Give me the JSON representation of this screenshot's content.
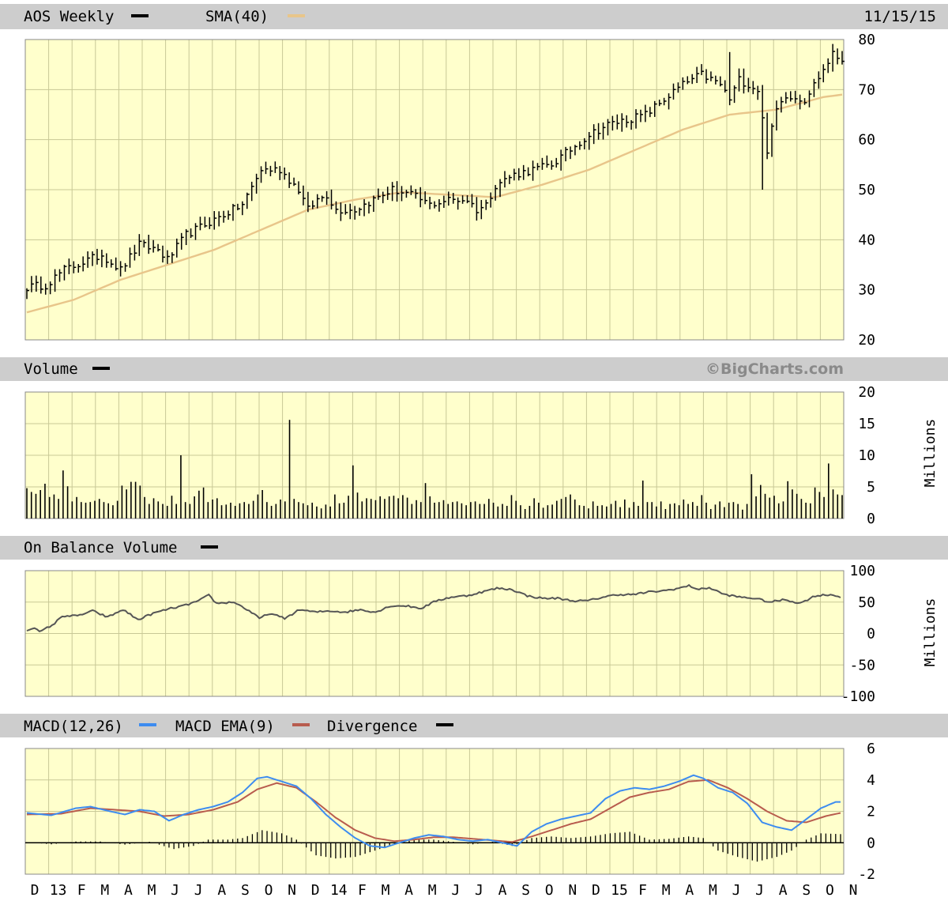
{
  "header": {
    "ticker_label": "AOS Weekly",
    "sma_label": "SMA(40)",
    "date": "11/15/15",
    "watermark": "©BigCharts.com",
    "volume_label": "Volume",
    "obv_label": "On Balance Volume",
    "macd_label": "MACD(12,26)",
    "macd_ema_label": "MACD EMA(9)",
    "divergence_label": "Divergence",
    "units_label": "Millions"
  },
  "colors": {
    "plot_bg": "#ffffcc",
    "grid": "#c8c896",
    "header_bg": "#cdcdcd",
    "price": "#000000",
    "sma": "#e8c58a",
    "obv": "#555555",
    "macd": "#3d8cf0",
    "macd_ema": "#b85c4e"
  },
  "chart_data": [
    {
      "name": "AOS Weekly",
      "type": "ohlc",
      "ylim": [
        20,
        80
      ],
      "yticks": [
        "80",
        "70",
        "60",
        "50",
        "40",
        "30",
        "20"
      ],
      "xticks": [
        "D",
        "13",
        "F",
        "M",
        "A",
        "M",
        "J",
        "J",
        "A",
        "S",
        "O",
        "N",
        "D",
        "14",
        "F",
        "M",
        "A",
        "M",
        "J",
        "J",
        "A",
        "S",
        "O",
        "N",
        "D",
        "15",
        "F",
        "M",
        "A",
        "M",
        "J",
        "J",
        "A",
        "S",
        "O",
        "N"
      ],
      "close_anchors": [
        [
          0,
          30.5
        ],
        [
          4,
          31
        ],
        [
          8,
          34
        ],
        [
          12,
          35.5
        ],
        [
          16,
          37
        ],
        [
          20,
          34
        ],
        [
          24,
          39
        ],
        [
          28,
          38
        ],
        [
          30,
          36
        ],
        [
          34,
          41
        ],
        [
          38,
          43
        ],
        [
          42,
          45
        ],
        [
          46,
          47
        ],
        [
          50,
          54
        ],
        [
          54,
          54
        ],
        [
          58,
          50
        ],
        [
          60,
          46
        ],
        [
          62,
          48
        ],
        [
          64,
          49
        ],
        [
          66,
          46
        ],
        [
          70,
          46
        ],
        [
          74,
          48
        ],
        [
          78,
          50
        ],
        [
          82,
          49
        ],
        [
          86,
          47
        ],
        [
          90,
          48
        ],
        [
          94,
          48
        ],
        [
          96,
          46
        ],
        [
          98,
          47
        ],
        [
          100,
          51
        ],
        [
          104,
          53
        ],
        [
          108,
          54
        ],
        [
          112,
          55
        ],
        [
          116,
          58
        ],
        [
          120,
          61
        ],
        [
          124,
          63
        ],
        [
          128,
          64
        ],
        [
          132,
          65
        ],
        [
          136,
          68
        ],
        [
          140,
          71
        ],
        [
          144,
          73
        ],
        [
          148,
          71
        ],
        [
          150,
          68
        ],
        [
          152,
          72
        ],
        [
          156,
          70
        ],
        [
          158,
          58
        ],
        [
          160,
          66
        ],
        [
          162,
          69
        ],
        [
          166,
          68
        ],
        [
          168,
          71
        ],
        [
          170,
          74
        ],
        [
          172,
          77
        ],
        [
          174,
          76
        ]
      ],
      "sma_anchors": [
        [
          0,
          25.5
        ],
        [
          10,
          28
        ],
        [
          20,
          32
        ],
        [
          30,
          35
        ],
        [
          40,
          38
        ],
        [
          50,
          42
        ],
        [
          60,
          46
        ],
        [
          70,
          48
        ],
        [
          80,
          49.5
        ],
        [
          90,
          49
        ],
        [
          100,
          48.5
        ],
        [
          110,
          51
        ],
        [
          120,
          54
        ],
        [
          130,
          58
        ],
        [
          140,
          62
        ],
        [
          150,
          65
        ],
        [
          160,
          66
        ],
        [
          170,
          68.5
        ],
        [
          174,
          69
        ]
      ]
    },
    {
      "name": "Volume",
      "type": "bar",
      "ylim": [
        0,
        20
      ],
      "yticks": [
        "20",
        "15",
        "10",
        "5",
        "0"
      ],
      "unit": "Millions",
      "values": [
        4.8,
        4.2,
        3.9,
        4.5,
        5.5,
        3.4,
        3.8,
        3.1,
        7.6,
        5.1,
        2.7,
        3.4,
        2.6,
        2.5,
        2.6,
        2.8,
        3.1,
        2.6,
        2.4,
        2.1,
        2.8,
        5.2,
        4.6,
        5.8,
        5.8,
        5.2,
        3.4,
        2.3,
        3.2,
        2.7,
        2.3,
        2.0,
        3.6,
        2.3,
        10.0,
        2.6,
        2.3,
        3.5,
        4.4,
        4.9,
        2.6,
        3.0,
        3.2,
        2.1,
        2.2,
        2.5,
        2.0,
        2.4,
        2.6,
        2.3,
        2.8,
        3.8,
        4.5,
        2.6,
        2.0,
        2.3,
        3.0,
        2.7,
        15.6,
        3.1,
        2.6,
        2.4,
        2.1,
        2.5,
        1.9,
        1.6,
        2.2,
        1.9,
        3.8,
        2.4,
        2.5,
        3.6,
        8.4,
        4.1,
        2.7,
        3.2,
        3.1,
        2.9,
        3.5,
        3.1,
        3.5,
        3.6,
        3.2,
        3.7,
        3.3,
        2.3,
        2.9,
        2.6,
        5.6,
        3.5,
        2.5,
        2.6,
        2.9,
        2.3,
        2.6,
        2.7,
        2.4,
        2.1,
        2.6,
        2.7,
        2.3,
        2.3,
        3.1,
        2.5,
        1.9,
        2.3,
        2.0,
        3.7,
        2.8,
        2.1,
        1.5,
        2.0,
        3.2,
        2.5,
        1.7,
        2.1,
        2.2,
        2.8,
        3.1,
        3.4,
        3.8,
        3.0,
        2.1,
        2.0,
        1.6,
        2.7,
        2.0,
        2.1,
        1.9,
        2.3,
        2.8,
        1.8,
        3.0,
        1.7,
        2.6,
        2.0,
        6.0,
        2.6,
        2.6,
        1.9,
        2.7,
        1.5,
        2.3,
        2.4,
        2.1,
        3.0,
        2.3,
        2.6,
        2.0,
        3.7,
        2.5,
        1.5,
        2.2,
        2.7,
        1.8,
        2.5,
        2.6,
        2.3,
        1.4,
        2.3,
        7.0,
        3.5,
        5.3,
        3.9,
        3.3,
        3.6,
        2.4,
        2.7,
        5.9,
        4.6,
        3.9,
        3.1,
        2.5,
        2.4,
        4.9,
        4.2,
        3.4,
        8.7,
        4.6,
        3.8,
        3.7
      ]
    },
    {
      "name": "On Balance Volume",
      "type": "line",
      "ylim": [
        -100,
        100
      ],
      "yticks": [
        "100",
        "50",
        "0",
        "-50",
        "-100"
      ],
      "unit": "Millions",
      "anchors": [
        [
          0,
          5
        ],
        [
          3,
          10
        ],
        [
          5,
          2
        ],
        [
          8,
          9
        ],
        [
          11,
          16
        ],
        [
          14,
          28
        ],
        [
          20,
          28
        ],
        [
          26,
          36
        ],
        [
          32,
          26
        ],
        [
          38,
          38
        ],
        [
          44,
          22
        ],
        [
          50,
          32
        ],
        [
          56,
          39
        ],
        [
          62,
          44
        ],
        [
          68,
          52
        ],
        [
          72,
          61
        ],
        [
          75,
          48
        ],
        [
          82,
          50
        ],
        [
          88,
          36
        ],
        [
          92,
          24
        ],
        [
          96,
          32
        ],
        [
          102,
          24
        ],
        [
          108,
          38
        ],
        [
          114,
          34
        ],
        [
          120,
          36
        ],
        [
          126,
          34
        ],
        [
          132,
          38
        ],
        [
          138,
          34
        ],
        [
          144,
          44
        ],
        [
          150,
          44
        ],
        [
          156,
          40
        ],
        [
          162,
          52
        ],
        [
          168,
          58
        ],
        [
          174,
          60
        ],
        [
          180,
          66
        ],
        [
          186,
          72
        ],
        [
          192,
          70
        ],
        [
          198,
          60
        ],
        [
          204,
          56
        ],
        [
          210,
          56
        ],
        [
          216,
          52
        ],
        [
          222,
          52
        ],
        [
          228,
          58
        ],
        [
          234,
          62
        ],
        [
          240,
          62
        ],
        [
          246,
          66
        ],
        [
          252,
          68
        ],
        [
          258,
          72
        ],
        [
          262,
          76
        ],
        [
          266,
          70
        ],
        [
          270,
          73
        ],
        [
          276,
          62
        ],
        [
          282,
          58
        ],
        [
          288,
          56
        ],
        [
          294,
          50
        ],
        [
          300,
          54
        ],
        [
          306,
          48
        ],
        [
          312,
          60
        ],
        [
          318,
          62
        ],
        [
          322,
          58
        ]
      ]
    },
    {
      "name": "MACD(12,26)",
      "type": "line",
      "ylim": [
        -2,
        6
      ],
      "yticks": [
        "6",
        "4",
        "2",
        "0",
        "-2"
      ],
      "macd_anchors": [
        [
          0,
          1.9
        ],
        [
          10,
          1.75
        ],
        [
          20,
          2.2
        ],
        [
          26,
          2.3
        ],
        [
          34,
          2.0
        ],
        [
          40,
          1.8
        ],
        [
          46,
          2.1
        ],
        [
          52,
          2.0
        ],
        [
          58,
          1.4
        ],
        [
          64,
          1.8
        ],
        [
          70,
          2.1
        ],
        [
          76,
          2.3
        ],
        [
          82,
          2.6
        ],
        [
          88,
          3.2
        ],
        [
          94,
          4.1
        ],
        [
          98,
          4.2
        ],
        [
          104,
          3.9
        ],
        [
          110,
          3.6
        ],
        [
          116,
          2.8
        ],
        [
          122,
          1.8
        ],
        [
          128,
          1.0
        ],
        [
          134,
          0.3
        ],
        [
          140,
          -0.2
        ],
        [
          146,
          -0.3
        ],
        [
          152,
          0.0
        ],
        [
          158,
          0.3
        ],
        [
          164,
          0.5
        ],
        [
          170,
          0.4
        ],
        [
          176,
          0.2
        ],
        [
          182,
          0.1
        ],
        [
          188,
          0.2
        ],
        [
          194,
          0.0
        ],
        [
          200,
          -0.2
        ],
        [
          206,
          0.7
        ],
        [
          212,
          1.2
        ],
        [
          218,
          1.5
        ],
        [
          224,
          1.7
        ],
        [
          230,
          1.9
        ],
        [
          236,
          2.8
        ],
        [
          242,
          3.3
        ],
        [
          248,
          3.5
        ],
        [
          254,
          3.4
        ],
        [
          260,
          3.6
        ],
        [
          266,
          3.9
        ],
        [
          272,
          4.3
        ],
        [
          276,
          4.1
        ],
        [
          282,
          3.5
        ],
        [
          288,
          3.2
        ],
        [
          294,
          2.5
        ],
        [
          300,
          1.3
        ],
        [
          306,
          1.0
        ],
        [
          312,
          0.8
        ],
        [
          318,
          1.5
        ],
        [
          324,
          2.2
        ],
        [
          330,
          2.6
        ]
      ],
      "ema_anchors": [
        [
          0,
          1.8
        ],
        [
          14,
          1.85
        ],
        [
          26,
          2.2
        ],
        [
          36,
          2.1
        ],
        [
          46,
          2.0
        ],
        [
          56,
          1.7
        ],
        [
          66,
          1.8
        ],
        [
          76,
          2.1
        ],
        [
          86,
          2.6
        ],
        [
          94,
          3.4
        ],
        [
          102,
          3.8
        ],
        [
          110,
          3.5
        ],
        [
          118,
          2.6
        ],
        [
          126,
          1.6
        ],
        [
          134,
          0.8
        ],
        [
          142,
          0.3
        ],
        [
          150,
          0.1
        ],
        [
          158,
          0.2
        ],
        [
          166,
          0.35
        ],
        [
          174,
          0.35
        ],
        [
          182,
          0.25
        ],
        [
          190,
          0.15
        ],
        [
          198,
          0.05
        ],
        [
          206,
          0.4
        ],
        [
          214,
          0.8
        ],
        [
          222,
          1.2
        ],
        [
          230,
          1.5
        ],
        [
          238,
          2.2
        ],
        [
          246,
          2.9
        ],
        [
          254,
          3.2
        ],
        [
          262,
          3.4
        ],
        [
          270,
          3.9
        ],
        [
          278,
          4.0
        ],
        [
          286,
          3.5
        ],
        [
          294,
          2.8
        ],
        [
          302,
          2.0
        ],
        [
          310,
          1.4
        ],
        [
          318,
          1.3
        ],
        [
          326,
          1.7
        ],
        [
          332,
          1.9
        ]
      ],
      "div_anchors": [
        [
          0,
          0.04
        ],
        [
          10,
          -0.1
        ],
        [
          20,
          0.08
        ],
        [
          30,
          0.08
        ],
        [
          40,
          -0.12
        ],
        [
          50,
          0.06
        ],
        [
          60,
          -0.4
        ],
        [
          68,
          -0.2
        ],
        [
          74,
          0.2
        ],
        [
          82,
          0.2
        ],
        [
          88,
          0.3
        ],
        [
          96,
          0.8
        ],
        [
          104,
          0.6
        ],
        [
          110,
          0.2
        ],
        [
          118,
          -0.8
        ],
        [
          126,
          -1.0
        ],
        [
          134,
          -0.9
        ],
        [
          142,
          -0.5
        ],
        [
          150,
          -0.1
        ],
        [
          158,
          0.2
        ],
        [
          166,
          0.2
        ],
        [
          174,
          0.06
        ],
        [
          182,
          -0.1
        ],
        [
          190,
          0.06
        ],
        [
          198,
          -0.2
        ],
        [
          206,
          0.3
        ],
        [
          214,
          0.4
        ],
        [
          222,
          0.3
        ],
        [
          230,
          0.4
        ],
        [
          238,
          0.6
        ],
        [
          246,
          0.7
        ],
        [
          254,
          0.2
        ],
        [
          262,
          0.25
        ],
        [
          270,
          0.4
        ],
        [
          276,
          0.3
        ],
        [
          282,
          -0.5
        ],
        [
          290,
          -0.9
        ],
        [
          298,
          -1.2
        ],
        [
          306,
          -0.9
        ],
        [
          312,
          -0.5
        ],
        [
          318,
          0.2
        ],
        [
          324,
          0.6
        ],
        [
          332,
          0.55
        ]
      ]
    }
  ]
}
